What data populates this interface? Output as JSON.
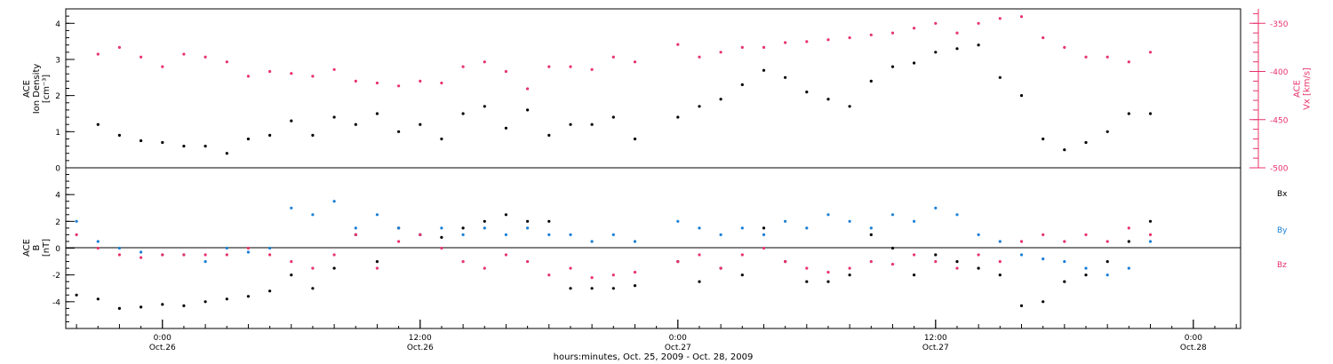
{
  "chart_data": [
    {
      "type": "scatter",
      "panel": "top",
      "ylabel_lines": [
        "ACE",
        "Ion Density",
        "[cm⁻³]"
      ],
      "ylim": [
        0,
        4.4
      ],
      "yticks": [
        0,
        1,
        2,
        3,
        4
      ],
      "right_axis": {
        "label_lines": [
          "ACE",
          "Vx [km/s]"
        ],
        "ylim": [
          -500,
          -335
        ],
        "yticks": [
          -500,
          -450,
          -400,
          -350
        ],
        "color": "#e8336b"
      },
      "series": [
        {
          "color": "#000000",
          "axis": "left",
          "x": [
            -3,
            -2,
            -1,
            0,
            1,
            2,
            3,
            4,
            5,
            6,
            7,
            8,
            9,
            10,
            11,
            12,
            13,
            14,
            15,
            16,
            17,
            18,
            19,
            20,
            21,
            22,
            24,
            25,
            26,
            27,
            28,
            29,
            30,
            31,
            32,
            33,
            34,
            35,
            36,
            37,
            38,
            39,
            40,
            41,
            42,
            43,
            44,
            45,
            46
          ],
          "values": [
            1.2,
            0.9,
            0.75,
            0.7,
            0.6,
            0.6,
            0.4,
            0.8,
            0.9,
            1.3,
            0.9,
            1.4,
            1.2,
            1.5,
            1.0,
            1.2,
            0.8,
            1.5,
            1.7,
            1.1,
            1.6,
            0.9,
            1.2,
            1.2,
            1.4,
            0.8,
            1.4,
            1.7,
            1.9,
            2.3,
            2.7,
            2.5,
            2.1,
            1.9,
            1.7,
            2.4,
            2.8,
            2.9,
            3.2,
            3.3,
            3.4,
            2.5,
            2.0,
            0.8,
            0.5,
            0.7,
            1.0,
            1.5,
            1.5
          ]
        },
        {
          "color": "#e8336b",
          "axis": "right",
          "x": [
            -3,
            -2,
            -1,
            0,
            1,
            2,
            3,
            4,
            5,
            6,
            7,
            8,
            9,
            10,
            11,
            12,
            13,
            14,
            15,
            16,
            17,
            18,
            19,
            20,
            21,
            22,
            24,
            25,
            26,
            27,
            28,
            29,
            30,
            31,
            32,
            33,
            34,
            35,
            36,
            37,
            38,
            39,
            40,
            41,
            42,
            43,
            44,
            45,
            46
          ],
          "values": [
            -382,
            -375,
            -385,
            -395,
            -382,
            -385,
            -390,
            -405,
            -400,
            -402,
            -405,
            -398,
            -410,
            -412,
            -415,
            -410,
            -412,
            -395,
            -390,
            -400,
            -418,
            -395,
            -395,
            -398,
            -385,
            -390,
            -372,
            -385,
            -380,
            -375,
            -375,
            -370,
            -369,
            -367,
            -365,
            -362,
            -360,
            -355,
            -350,
            -360,
            -350,
            -345,
            -343,
            -365,
            -375,
            -385,
            -385,
            -390,
            -380
          ]
        }
      ]
    },
    {
      "type": "scatter",
      "panel": "bottom",
      "ylabel_lines": [
        "ACE",
        "B",
        "[nT]"
      ],
      "ylim": [
        -6,
        6
      ],
      "yticks": [
        -4,
        -2,
        0,
        2,
        4
      ],
      "xlabel": "hours:minutes, Oct. 25, 2009 - Oct. 28, 2009",
      "xlim": [
        -4.5,
        50.2
      ],
      "xticks": [
        {
          "x": 0,
          "line1": "0:00",
          "line2": "Oct.26"
        },
        {
          "x": 12,
          "line1": "12:00",
          "line2": "Oct.26"
        },
        {
          "x": 24,
          "line1": "0:00",
          "line2": "Oct.27"
        },
        {
          "x": 36,
          "line1": "12:00",
          "line2": "Oct.27"
        },
        {
          "x": 48,
          "line1": "0:00",
          "line2": "Oct.28"
        }
      ],
      "legend": [
        "Bx",
        "By",
        "Bz"
      ],
      "series": [
        {
          "name": "Bx",
          "color": "#000000",
          "x": [
            -4,
            -3,
            -2,
            -1,
            0,
            1,
            2,
            3,
            4,
            5,
            6,
            7,
            8,
            9,
            10,
            11,
            12,
            13,
            14,
            15,
            16,
            17,
            18,
            19,
            20,
            21,
            22,
            24,
            25,
            26,
            27,
            28,
            29,
            30,
            31,
            32,
            33,
            34,
            35,
            36,
            37,
            38,
            39,
            40,
            41,
            42,
            43,
            44,
            45,
            46
          ],
          "values": [
            -3.5,
            -3.8,
            -4.5,
            -4.4,
            -4.2,
            -4.3,
            -4.0,
            -3.8,
            -3.6,
            -3.2,
            -2.0,
            -3.0,
            -1.5,
            1.0,
            -1.0,
            1.5,
            1.0,
            0.8,
            1.5,
            2.0,
            2.5,
            2.0,
            2.0,
            -3.0,
            -3.0,
            -3.0,
            -2.8,
            -1.0,
            -2.5,
            -1.5,
            -2.0,
            1.5,
            -1.0,
            -2.5,
            -2.5,
            -2.0,
            1.0,
            0.0,
            -2.0,
            -0.5,
            -1.0,
            -1.5,
            -2.0,
            -4.3,
            -4.0,
            -2.5,
            -2.0,
            -1.0,
            0.5,
            2.0
          ]
        },
        {
          "name": "By",
          "color": "#1a7fd6",
          "x": [
            -4,
            -3,
            -2,
            -1,
            0,
            1,
            2,
            3,
            4,
            5,
            6,
            7,
            8,
            9,
            10,
            11,
            12,
            13,
            14,
            15,
            16,
            17,
            18,
            19,
            20,
            21,
            22,
            24,
            25,
            26,
            27,
            28,
            29,
            30,
            31,
            32,
            33,
            34,
            35,
            36,
            37,
            38,
            39,
            40,
            41,
            42,
            43,
            44,
            45,
            46
          ],
          "values": [
            2.0,
            0.5,
            0.0,
            -0.3,
            -0.5,
            -0.5,
            -1.0,
            0.0,
            -0.3,
            0.0,
            3.0,
            2.5,
            3.5,
            1.5,
            2.5,
            1.5,
            1.0,
            1.5,
            1.0,
            1.5,
            1.0,
            1.5,
            1.0,
            1.0,
            0.5,
            1.0,
            0.5,
            2.0,
            1.5,
            1.0,
            1.5,
            1.0,
            2.0,
            1.5,
            2.5,
            2.0,
            1.5,
            2.5,
            2.0,
            3.0,
            2.5,
            1.0,
            0.5,
            -0.5,
            -0.8,
            -1.0,
            -1.5,
            -2.0,
            -1.5,
            0.5
          ]
        },
        {
          "name": "Bz",
          "color": "#e8336b",
          "x": [
            -4,
            -3,
            -2,
            -1,
            0,
            1,
            2,
            3,
            4,
            5,
            6,
            7,
            8,
            9,
            10,
            11,
            12,
            13,
            14,
            15,
            16,
            17,
            18,
            19,
            20,
            21,
            22,
            24,
            25,
            26,
            27,
            28,
            29,
            30,
            31,
            32,
            33,
            34,
            35,
            36,
            37,
            38,
            39,
            40,
            41,
            42,
            43,
            44,
            45,
            46
          ],
          "values": [
            1.0,
            0.0,
            -0.5,
            -0.7,
            -0.5,
            -0.5,
            -0.5,
            -0.5,
            0.0,
            -0.5,
            -1.0,
            -1.5,
            -0.5,
            1.0,
            -1.5,
            0.5,
            1.0,
            0.0,
            -1.0,
            -1.5,
            -0.5,
            -1.0,
            -2.0,
            -1.5,
            -2.2,
            -2.0,
            -1.8,
            -1.0,
            -0.5,
            -1.5,
            -0.5,
            0.0,
            -1.0,
            -1.5,
            -1.8,
            -1.5,
            -1.0,
            -1.2,
            -0.5,
            -1.0,
            -1.5,
            -0.5,
            -1.0,
            0.5,
            1.0,
            0.5,
            1.0,
            0.5,
            1.5,
            1.0
          ]
        }
      ]
    }
  ]
}
